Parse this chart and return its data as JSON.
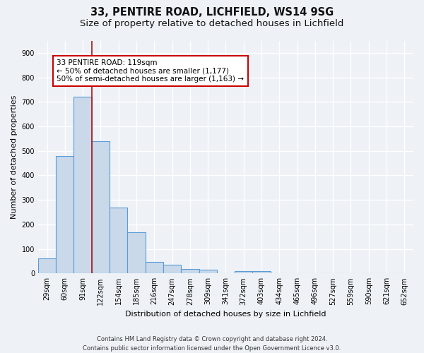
{
  "title1": "33, PENTIRE ROAD, LICHFIELD, WS14 9SG",
  "title2": "Size of property relative to detached houses in Lichfield",
  "xlabel": "Distribution of detached houses by size in Lichfield",
  "ylabel": "Number of detached properties",
  "categories": [
    "29sqm",
    "60sqm",
    "91sqm",
    "122sqm",
    "154sqm",
    "185sqm",
    "216sqm",
    "247sqm",
    "278sqm",
    "309sqm",
    "341sqm",
    "372sqm",
    "403sqm",
    "434sqm",
    "465sqm",
    "496sqm",
    "527sqm",
    "559sqm",
    "590sqm",
    "621sqm",
    "652sqm"
  ],
  "values": [
    62,
    480,
    720,
    540,
    270,
    168,
    48,
    35,
    18,
    14,
    0,
    10,
    10,
    0,
    0,
    0,
    0,
    0,
    0,
    0,
    0
  ],
  "bar_color": "#c9d9ea",
  "bar_edge_color": "#5b9bd5",
  "vline_color": "#aa1111",
  "annotation_text": "33 PENTIRE ROAD: 119sqm\n← 50% of detached houses are smaller (1,177)\n50% of semi-detached houses are larger (1,163) →",
  "annotation_box_color": "#ffffff",
  "annotation_box_edge_color": "#cc0000",
  "ylim": [
    0,
    950
  ],
  "yticks": [
    0,
    100,
    200,
    300,
    400,
    500,
    600,
    700,
    800,
    900
  ],
  "footer": "Contains HM Land Registry data © Crown copyright and database right 2024.\nContains public sector information licensed under the Open Government Licence v3.0.",
  "bg_color": "#eef2f7",
  "grid_color": "#ffffff",
  "title1_fontsize": 10.5,
  "title2_fontsize": 9.5,
  "axis_fontsize": 8,
  "tick_fontsize": 7,
  "annot_fontsize": 7.5
}
